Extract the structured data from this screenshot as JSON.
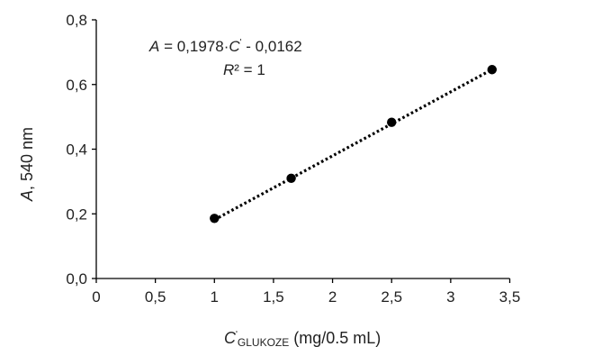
{
  "chart_data": {
    "type": "scatter",
    "title": "",
    "x_tick_labels": [
      "0",
      "0,5",
      "1",
      "1,5",
      "2",
      "2,5",
      "3",
      "3,5"
    ],
    "x_ticks": [
      0,
      0.5,
      1,
      1.5,
      2,
      2.5,
      3,
      3.5
    ],
    "y_tick_labels": [
      "0,0",
      "0,2",
      "0,4",
      "0,6",
      "0,8"
    ],
    "y_ticks": [
      0,
      0.2,
      0.4,
      0.6,
      0.8
    ],
    "xlim": [
      0,
      3.5
    ],
    "ylim": [
      0,
      0.8
    ],
    "grid": false,
    "xlabel": {
      "symbol": "C",
      "prime": "'",
      "subscript": "GLUKOZE",
      "unit": " (mg/0.5 mL)"
    },
    "ylabel": {
      "symbol": "A",
      "rest": ", 540 nm"
    },
    "points": [
      {
        "x": 1.0,
        "y": 0.186
      },
      {
        "x": 1.65,
        "y": 0.31
      },
      {
        "x": 2.5,
        "y": 0.483
      },
      {
        "x": 3.35,
        "y": 0.646
      }
    ],
    "trendline": {
      "style": "dotted",
      "slope": 0.1978,
      "intercept": -0.0162,
      "x_range": [
        1.0,
        3.35
      ],
      "equation": {
        "lhs": "A",
        "mid": " = 0,1978·",
        "var": "C",
        "prime": "'",
        "rest": "  - 0,0162"
      },
      "r2": {
        "sym": "R",
        "rest": "² = 1"
      }
    },
    "colors": {
      "marker": "#000000",
      "axis": "#000000",
      "trendline": "#000000"
    }
  }
}
